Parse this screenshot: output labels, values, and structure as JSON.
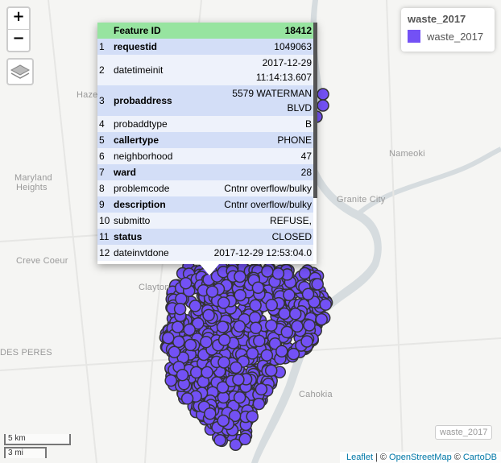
{
  "zoom": {
    "in": "+",
    "out": "−"
  },
  "legend": {
    "title": "waste_2017",
    "entries": [
      {
        "label": "waste_2017",
        "color": "#7351f5"
      }
    ]
  },
  "popup": {
    "header": [
      "Feature ID",
      "18412"
    ],
    "rows": [
      [
        "1",
        "requestid",
        "1049063"
      ],
      [
        "2",
        "datetimeinit",
        "2017-12-29 11:14:13.607"
      ],
      [
        "3",
        "probaddress",
        "5579 WATERMAN BLVD"
      ],
      [
        "4",
        "probaddtype",
        "B"
      ],
      [
        "5",
        "callertype",
        "PHONE"
      ],
      [
        "6",
        "neighborhood",
        "47"
      ],
      [
        "7",
        "ward",
        "28"
      ],
      [
        "8",
        "problemcode",
        "Cntnr overflow/bulky"
      ],
      [
        "9",
        "description",
        "Cntnr overflow/bulky"
      ],
      [
        "10",
        "submitto",
        "REFUSE,"
      ],
      [
        "11",
        "status",
        "CLOSED"
      ],
      [
        "12",
        "dateinvtdone",
        "2017-12-29 12:53:04.0"
      ]
    ]
  },
  "place_labels": [
    "Haze",
    "Maryland",
    "Heights",
    "Creve Coeur",
    "Clayton",
    "DES PERES",
    "Nameoki",
    "Granite City",
    "Cahokia"
  ],
  "scale": [
    "5 km",
    "3 mi"
  ],
  "attribution": [
    "Leaflet",
    "| ©",
    "OpenStreetMap",
    "©",
    "CartoDB"
  ],
  "layer_badge": "waste_2017"
}
